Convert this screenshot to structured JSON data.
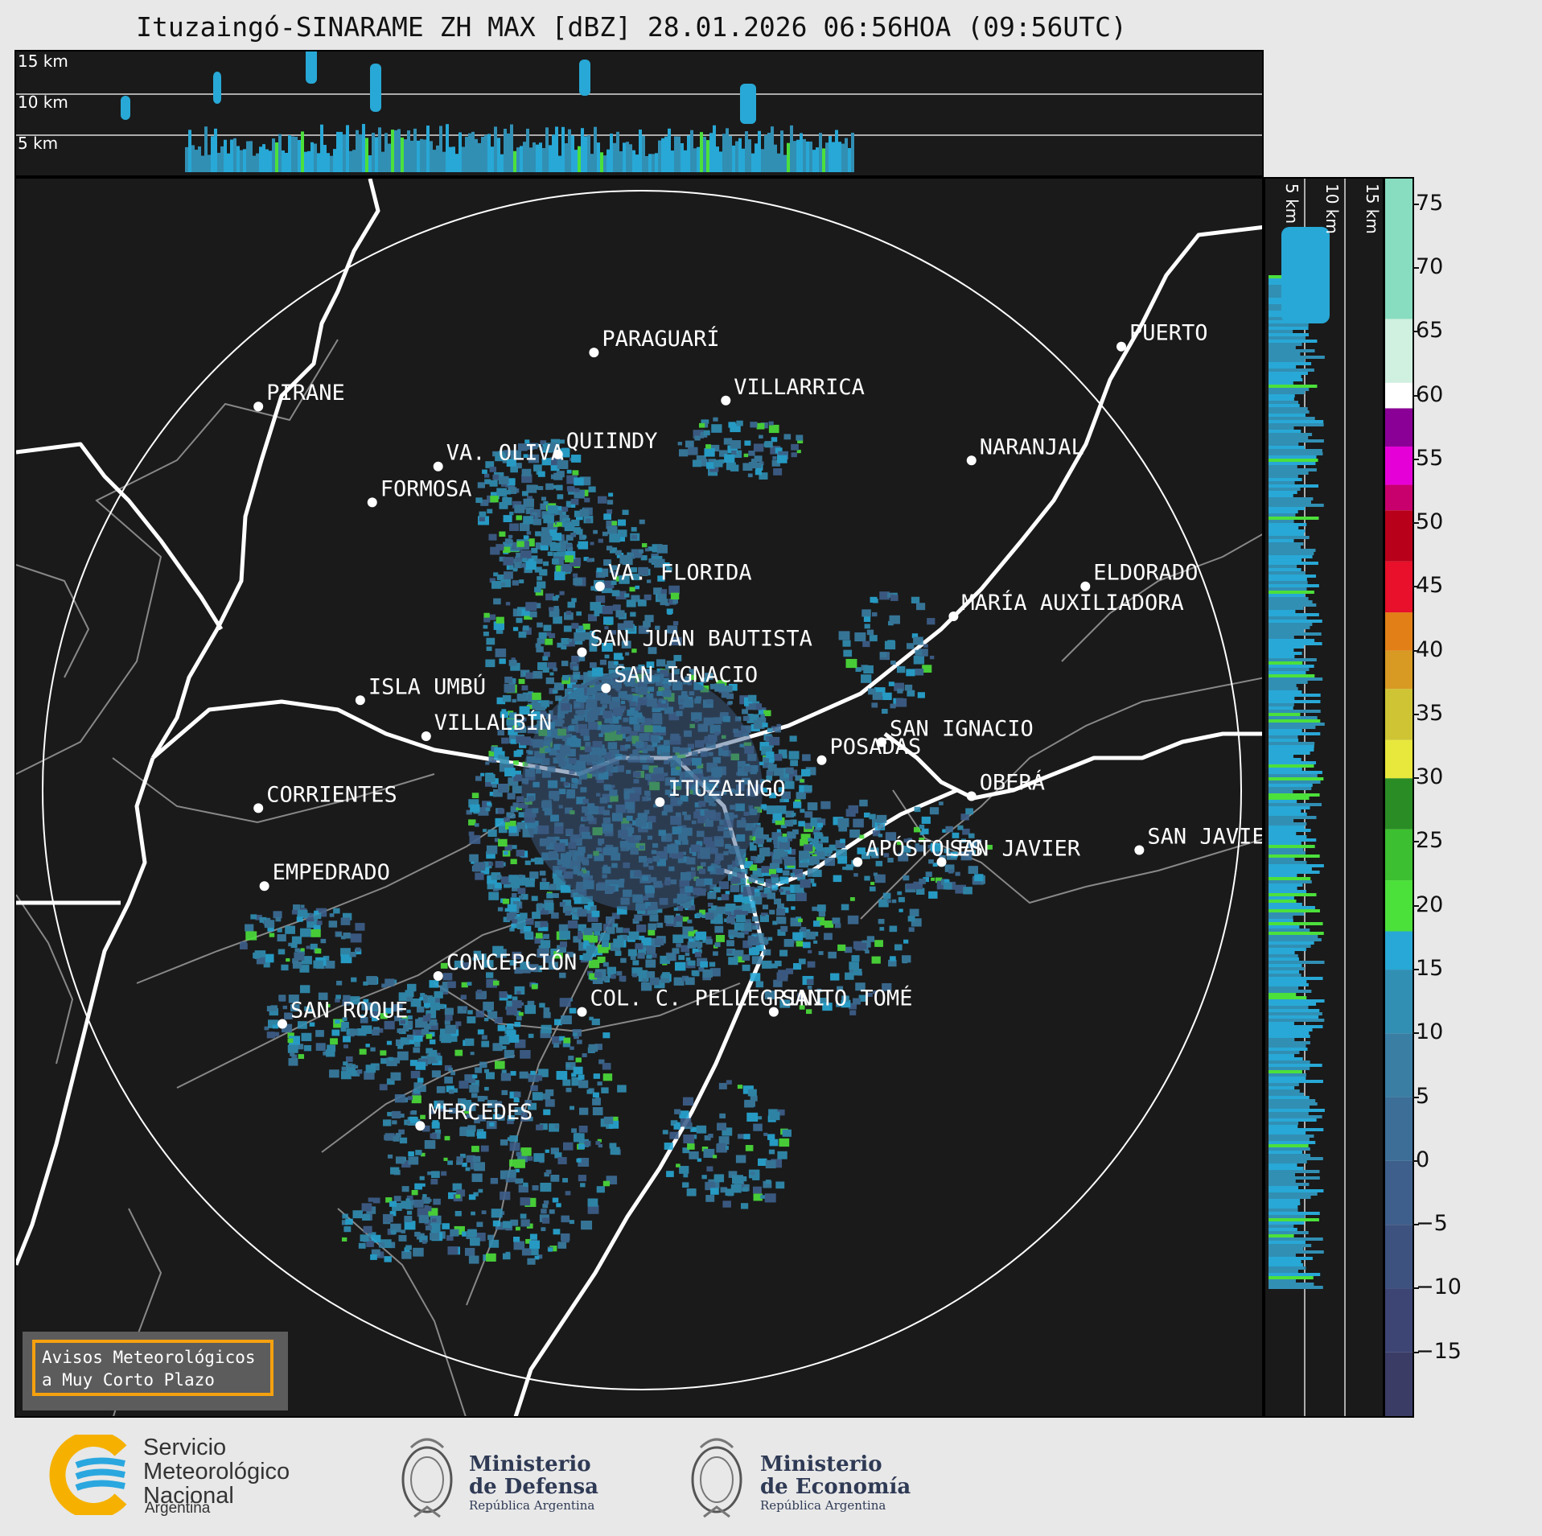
{
  "title": "Ituzaingó-SINARAME ZH MAX [dBZ] 28.01.2026 06:56HOA (09:56UTC)",
  "top_profile": {
    "height_labels": [
      "15 km",
      "10 km",
      "5 km"
    ]
  },
  "side_profile": {
    "height_labels": [
      "5 km",
      "10 km",
      "15 km"
    ]
  },
  "map": {
    "cities": [
      {
        "name": "PIRANE",
        "dx": -0.64,
        "dy": -0.64
      },
      {
        "name": "PARAGUARÍ",
        "dx": -0.08,
        "dy": -0.73
      },
      {
        "name": "VILLARRICA",
        "dx": 0.14,
        "dy": -0.65
      },
      {
        "name": "QUIINDY",
        "dx": -0.14,
        "dy": -0.56
      },
      {
        "name": "VA. OLIVA",
        "dx": -0.34,
        "dy": -0.54
      },
      {
        "name": "NARANJAL",
        "dx": 0.55,
        "dy": -0.55
      },
      {
        "name": "FORMOSA",
        "dx": -0.45,
        "dy": -0.48
      },
      {
        "name": "VA. FLORIDA",
        "dx": -0.07,
        "dy": -0.34
      },
      {
        "name": "ELDORADO",
        "dx": 0.74,
        "dy": -0.34
      },
      {
        "name": "MARÍA AUXILIADORA",
        "dx": 0.52,
        "dy": -0.29
      },
      {
        "name": "SAN JUAN BAUTISTA",
        "dx": -0.1,
        "dy": -0.23
      },
      {
        "name": "SAN IGNACIO",
        "dx": -0.06,
        "dy": -0.17
      },
      {
        "name": "ISLA UMBÚ",
        "dx": -0.47,
        "dy": -0.15
      },
      {
        "name": "VILLALBÍN",
        "dx": -0.36,
        "dy": -0.09
      },
      {
        "name": "SAN IGNACIO",
        "dx": 0.4,
        "dy": -0.08
      },
      {
        "name": "POSADAS",
        "dx": 0.3,
        "dy": -0.05
      },
      {
        "name": "CORRIENTES",
        "dx": -0.64,
        "dy": 0.03
      },
      {
        "name": "OBERÁ",
        "dx": 0.55,
        "dy": 0.01
      },
      {
        "name": "ITUZAINGO",
        "dx": 0.03,
        "dy": 0.02
      },
      {
        "name": "APÓSTOLES",
        "dx": 0.36,
        "dy": 0.12
      },
      {
        "name": "SAN JAVIER",
        "dx": 0.5,
        "dy": 0.12
      },
      {
        "name": "SAN JAVIER",
        "dx": 0.83,
        "dy": 0.1
      },
      {
        "name": "EMPEDRADO",
        "dx": -0.63,
        "dy": 0.16
      },
      {
        "name": "CONCEPCIÓN",
        "dx": -0.34,
        "dy": 0.31
      },
      {
        "name": "COL. C. PELLEGRINI",
        "dx": -0.1,
        "dy": 0.37
      },
      {
        "name": "SANTO TOMÉ",
        "dx": 0.22,
        "dy": 0.37
      },
      {
        "name": "SAN ROQUE",
        "dx": -0.6,
        "dy": 0.39
      },
      {
        "name": "MERCEDES",
        "dx": -0.37,
        "dy": 0.56
      },
      {
        "name": "PUERTO",
        "dx": 0.8,
        "dy": -0.74
      }
    ]
  },
  "colorbar": {
    "unit": "dBZ",
    "min": -20,
    "max": 77,
    "ticks": [
      75,
      70,
      65,
      60,
      55,
      50,
      45,
      40,
      35,
      30,
      25,
      20,
      15,
      10,
      5,
      0,
      -5,
      -10,
      -15
    ],
    "tick_labels": [
      "75",
      "70",
      "65",
      "60",
      "55",
      "50",
      "45",
      "40",
      "35",
      "30",
      "25",
      "20",
      "15",
      "10",
      "5",
      "0",
      "−5",
      "−10",
      "−15"
    ],
    "segments": [
      {
        "from": -20,
        "to": -15,
        "color": "#3a3c66"
      },
      {
        "from": -15,
        "to": -10,
        "color": "#3c4573"
      },
      {
        "from": -10,
        "to": -5,
        "color": "#3d527f"
      },
      {
        "from": -5,
        "to": 0,
        "color": "#3e5f8b"
      },
      {
        "from": 0,
        "to": 5,
        "color": "#3d6e97"
      },
      {
        "from": 5,
        "to": 10,
        "color": "#3a7ea4"
      },
      {
        "from": 10,
        "to": 15,
        "color": "#318fb4"
      },
      {
        "from": 15,
        "to": 18,
        "color": "#28a8d6"
      },
      {
        "from": 18,
        "to": 22,
        "color": "#4ce03b"
      },
      {
        "from": 22,
        "to": 26,
        "color": "#3cbf30"
      },
      {
        "from": 26,
        "to": 30,
        "color": "#2a8c24"
      },
      {
        "from": 30,
        "to": 33,
        "color": "#e8e83c"
      },
      {
        "from": 33,
        "to": 37,
        "color": "#cfc534"
      },
      {
        "from": 37,
        "to": 40,
        "color": "#d89a22"
      },
      {
        "from": 40,
        "to": 43,
        "color": "#e27f17"
      },
      {
        "from": 43,
        "to": 47,
        "color": "#e8102a"
      },
      {
        "from": 47,
        "to": 51,
        "color": "#b8001a"
      },
      {
        "from": 51,
        "to": 53,
        "color": "#c7006e"
      },
      {
        "from": 53,
        "to": 56,
        "color": "#e600d8"
      },
      {
        "from": 56,
        "to": 59,
        "color": "#8a0096"
      },
      {
        "from": 59,
        "to": 61,
        "color": "#ffffff"
      },
      {
        "from": 61,
        "to": 66,
        "color": "#d0f0e0"
      },
      {
        "from": 66,
        "to": 77,
        "color": "#88dcc0"
      }
    ]
  },
  "alert": {
    "line1": "Avisos Meteorológicos",
    "line2": "a Muy Corto Plazo"
  },
  "footer": {
    "smn": {
      "line1": "Servicio",
      "line2": "Meteorológico",
      "line3": "Nacional",
      "sub": "Argentina"
    },
    "defensa": {
      "line1": "Ministerio",
      "line2": "de Defensa",
      "sub": "República Argentina"
    },
    "economia": {
      "line1": "Ministerio",
      "line2": "de Economía",
      "sub": "República Argentina"
    }
  },
  "colors": {
    "panel_bg": "#1a1a1a",
    "alert_border": "#f5a10f",
    "echo_main": "#3a7ea4"
  }
}
